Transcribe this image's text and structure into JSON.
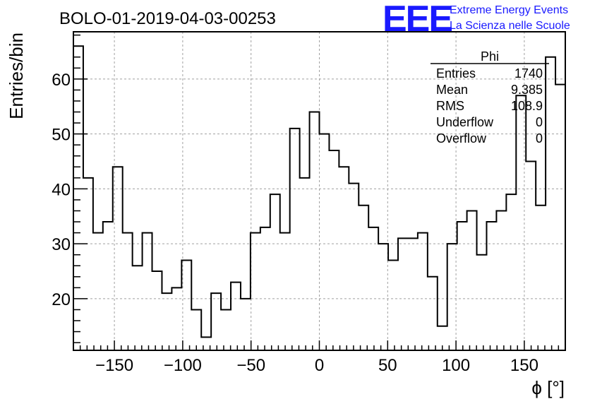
{
  "chart_data": {
    "type": "bar",
    "title": "BOLO-01-2019-04-03-00253",
    "xlabel": "ϕ [°]",
    "ylabel": "Entries/bin",
    "xlim": [
      -180,
      180
    ],
    "ylim": [
      10.6,
      68.6
    ],
    "x_bin_width": 7.2,
    "x_ticks": [
      -150,
      -100,
      -50,
      0,
      50,
      100,
      150
    ],
    "x_tick_labels": [
      "−150",
      "−100",
      "−50",
      "0",
      "50",
      "100",
      "150"
    ],
    "y_ticks": [
      20,
      30,
      40,
      50,
      60
    ],
    "y_tick_labels": [
      "20",
      "30",
      "40",
      "50",
      "60"
    ],
    "grid": true,
    "values": [
      66,
      42,
      32,
      34,
      44,
      32,
      26,
      32,
      25,
      21,
      22,
      27,
      18,
      13,
      21,
      18,
      23,
      20,
      32,
      33,
      39,
      32,
      51,
      42,
      54,
      50,
      47,
      44,
      41,
      37,
      33,
      30,
      27,
      31,
      31,
      32,
      24,
      15,
      30,
      34,
      36,
      28,
      34,
      36,
      39,
      57,
      45,
      37,
      64,
      59
    ],
    "stats_box": {
      "title": "Phi",
      "rows": [
        {
          "label": "Entries",
          "value": "1740"
        },
        {
          "label": "Mean",
          "value": "9.385"
        },
        {
          "label": "RMS",
          "value": "108.9"
        },
        {
          "label": "Underflow",
          "value": "0"
        },
        {
          "label": "Overflow",
          "value": "0"
        }
      ]
    }
  },
  "logo": {
    "text": "EEE",
    "line1": "Extreme Energy Events",
    "line2": "La Scienza nelle Scuole",
    "color": "#1a1aff"
  }
}
